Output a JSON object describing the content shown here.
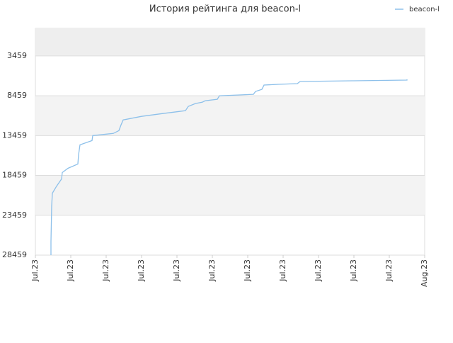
{
  "chart_data": {
    "type": "line",
    "title": "История рейтинга для beacon-l",
    "series": [
      {
        "name": "beacon-l",
        "color": "#8dc0ea",
        "x": [
          0.44,
          0.44,
          0.46,
          0.48,
          0.6,
          0.74,
          0.76,
          0.92,
          1.2,
          1.22,
          1.26,
          1.6,
          1.62,
          2.0,
          2.2,
          2.36,
          2.42,
          2.48,
          3.0,
          3.6,
          4.24,
          4.32,
          4.52,
          4.72,
          4.8,
          5.14,
          5.2,
          5.7,
          6.16,
          6.22,
          6.4,
          6.46,
          6.86,
          7.4,
          7.48,
          8.94,
          9.0,
          10.5,
          10.5
        ],
        "values": [
          28459,
          26760,
          22296,
          20689,
          19796,
          18903,
          18100,
          17564,
          17029,
          15868,
          14618,
          14082,
          13457,
          13278,
          13189,
          12832,
          12118,
          11493,
          11046,
          10689,
          10332,
          9796,
          9439,
          9261,
          9082,
          8904,
          8457,
          8368,
          8279,
          7921,
          7654,
          7118,
          7029,
          6939,
          6671,
          6582,
          6582,
          6493,
          6403
        ]
      }
    ],
    "ylim": [
      28459,
      0
    ],
    "yticks": [
      3459,
      8459,
      13459,
      18459,
      23459,
      28459
    ],
    "xlim": [
      0,
      11
    ],
    "xticks": [
      {
        "value": 0,
        "label": "Jul.23"
      },
      {
        "value": 1,
        "label": "Jul.23"
      },
      {
        "value": 2,
        "label": "Jul.23"
      },
      {
        "value": 3,
        "label": "Jul.23"
      },
      {
        "value": 4,
        "label": "Jul.23"
      },
      {
        "value": 5,
        "label": "Jul.23"
      },
      {
        "value": 6,
        "label": "Jul.23"
      },
      {
        "value": 7,
        "label": "Jul.23"
      },
      {
        "value": 8,
        "label": "Jul.23"
      },
      {
        "value": 9,
        "label": "Jul.23"
      },
      {
        "value": 10,
        "label": "Jul.23"
      },
      {
        "value": 11,
        "label": "Aug.23"
      }
    ],
    "grid": true,
    "legend": "top-right"
  }
}
